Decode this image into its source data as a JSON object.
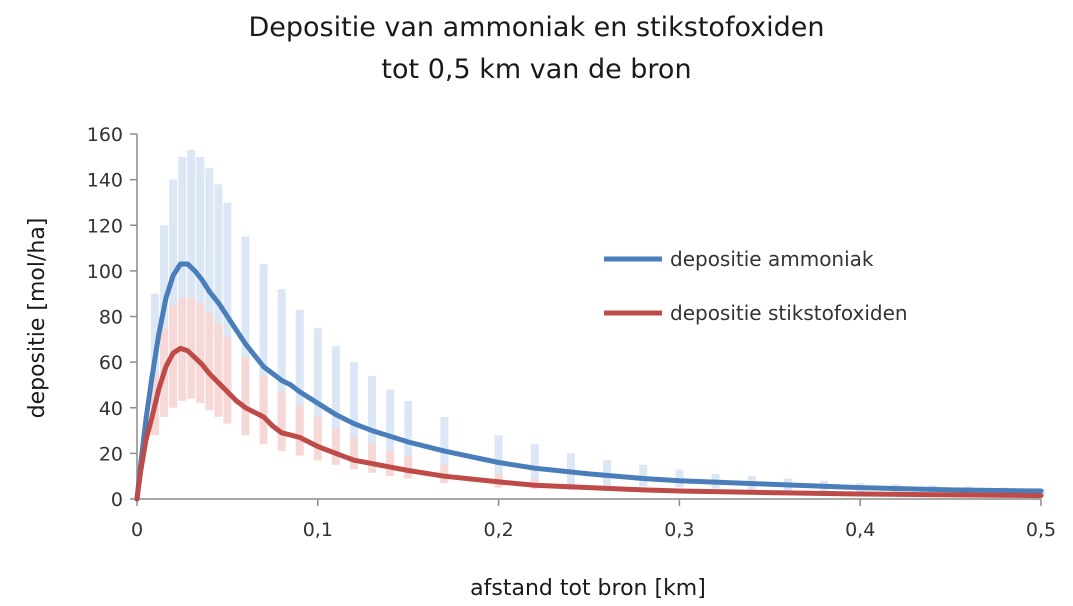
{
  "chart_data": {
    "type": "line",
    "title_lines": [
      "Depositie van ammoniak en stikstofoxiden",
      "tot 0,5 km van de bron"
    ],
    "xlabel": "afstand tot bron [km]",
    "ylabel": "depositie [mol/ha]",
    "xlim": [
      0,
      0.5
    ],
    "ylim": [
      0,
      160
    ],
    "x_ticks": [
      0,
      0.1,
      0.2,
      0.3,
      0.4,
      0.5
    ],
    "x_tick_labels": [
      "0",
      "0,1",
      "0,2",
      "0,3",
      "0,4",
      "0,5"
    ],
    "y_ticks": [
      0,
      20,
      40,
      60,
      80,
      100,
      120,
      140,
      160
    ],
    "y_tick_labels": [
      "0",
      "20",
      "40",
      "60",
      "80",
      "100",
      "120",
      "140",
      "160"
    ],
    "legend_position": "right",
    "series": [
      {
        "name": "depositie ammoniak",
        "color": "#4a7ebb",
        "band_color": "#dce7f5",
        "x": [
          0,
          0.002,
          0.005,
          0.008,
          0.012,
          0.016,
          0.02,
          0.024,
          0.028,
          0.032,
          0.036,
          0.04,
          0.045,
          0.05,
          0.055,
          0.06,
          0.065,
          0.07,
          0.075,
          0.08,
          0.085,
          0.09,
          0.1,
          0.11,
          0.12,
          0.13,
          0.14,
          0.15,
          0.17,
          0.2,
          0.22,
          0.25,
          0.28,
          0.3,
          0.35,
          0.4,
          0.45,
          0.5
        ],
        "values": [
          0,
          15,
          35,
          52,
          72,
          88,
          98,
          103,
          103,
          100,
          96,
          91,
          86,
          80,
          74,
          68,
          63,
          58,
          55,
          52,
          50,
          47,
          42,
          37,
          33,
          30,
          27.5,
          25,
          21,
          16,
          13.5,
          11,
          9,
          8,
          6.5,
          5,
          4,
          3.5
        ],
        "band": {
          "x": [
            0.01,
            0.015,
            0.02,
            0.025,
            0.03,
            0.035,
            0.04,
            0.045,
            0.05,
            0.06,
            0.07,
            0.08,
            0.09,
            0.1,
            0.11,
            0.12,
            0.13,
            0.14,
            0.15,
            0.17,
            0.2,
            0.22,
            0.24,
            0.26,
            0.28,
            0.3,
            0.32,
            0.34,
            0.36,
            0.38,
            0.4,
            0.42,
            0.44,
            0.46,
            0.48,
            0.5
          ],
          "low": [
            40,
            50,
            55,
            58,
            60,
            58,
            55,
            50,
            46,
            40,
            35,
            31,
            28,
            25,
            22,
            20,
            18,
            16,
            15,
            12,
            9,
            8,
            7,
            6,
            5.5,
            5,
            4.5,
            4,
            3.5,
            3,
            2.5,
            2.2,
            2,
            1.8,
            1.6,
            1.5
          ],
          "high": [
            90,
            120,
            140,
            150,
            153,
            150,
            145,
            138,
            130,
            115,
            103,
            92,
            83,
            75,
            67,
            60,
            54,
            48,
            43,
            36,
            28,
            24,
            20,
            17,
            15,
            13,
            11,
            10,
            9,
            8,
            7,
            6.5,
            6,
            5.5,
            5,
            4.5
          ]
        }
      },
      {
        "name": "depositie stikstofoxiden",
        "color": "#be4b48",
        "band_color": "#f6d8d6",
        "x": [
          0,
          0.002,
          0.005,
          0.008,
          0.012,
          0.016,
          0.02,
          0.024,
          0.028,
          0.032,
          0.036,
          0.04,
          0.045,
          0.05,
          0.055,
          0.06,
          0.065,
          0.07,
          0.075,
          0.08,
          0.085,
          0.09,
          0.1,
          0.11,
          0.12,
          0.13,
          0.14,
          0.15,
          0.17,
          0.2,
          0.22,
          0.25,
          0.28,
          0.3,
          0.35,
          0.4,
          0.45,
          0.5
        ],
        "values": [
          0,
          12,
          26,
          35,
          48,
          58,
          64,
          66,
          65,
          62,
          59,
          55,
          51,
          47,
          43,
          40,
          38,
          36,
          32,
          29,
          28,
          27,
          23,
          20,
          17,
          15.5,
          14,
          12.5,
          10,
          7.5,
          6,
          5,
          4,
          3.5,
          2.8,
          2.2,
          1.8,
          1.5
        ],
        "band": {
          "x": [
            0.01,
            0.015,
            0.02,
            0.025,
            0.03,
            0.035,
            0.04,
            0.045,
            0.05,
            0.06,
            0.07,
            0.08,
            0.09,
            0.1,
            0.11,
            0.12,
            0.13,
            0.14,
            0.15,
            0.17,
            0.2,
            0.22,
            0.24,
            0.26,
            0.28,
            0.3
          ],
          "low": [
            28,
            36,
            40,
            43,
            44,
            42,
            39,
            36,
            33,
            28,
            24,
            21,
            19,
            17,
            15,
            13,
            11.5,
            10,
            9,
            7,
            5,
            4.5,
            4,
            3.5,
            3,
            2.5
          ],
          "high": [
            55,
            75,
            85,
            88,
            88,
            86,
            82,
            77,
            71,
            62,
            54,
            47,
            41,
            36,
            31,
            27,
            24,
            21,
            19,
            15,
            11,
            9,
            7,
            6,
            5,
            4
          ]
        }
      }
    ]
  }
}
